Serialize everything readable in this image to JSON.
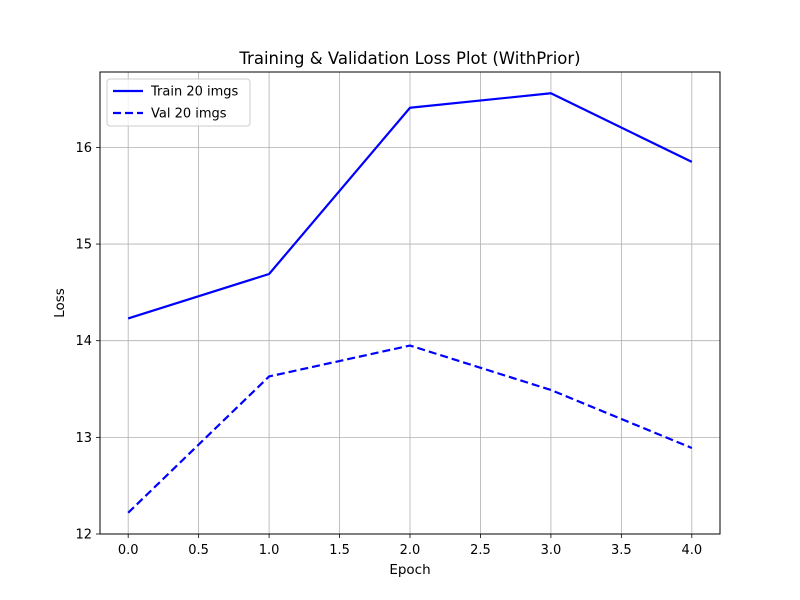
{
  "chart_data": {
    "type": "line",
    "title": "Training & Validation Loss Plot (WithPrior)",
    "xlabel": "Epoch",
    "ylabel": "Loss",
    "xlim": [
      -0.2,
      4.2
    ],
    "ylim": [
      12,
      16.78
    ],
    "xticks": [
      0.0,
      0.5,
      1.0,
      1.5,
      2.0,
      2.5,
      3.0,
      3.5,
      4.0
    ],
    "xtick_labels": [
      "0.0",
      "0.5",
      "1.0",
      "1.5",
      "2.0",
      "2.5",
      "3.0",
      "3.5",
      "4.0"
    ],
    "yticks": [
      12,
      13,
      14,
      15,
      16
    ],
    "ytick_labels": [
      "12",
      "13",
      "14",
      "15",
      "16"
    ],
    "grid": true,
    "legend_position": "top-left",
    "x": [
      0,
      1,
      2,
      3,
      4
    ],
    "series": [
      {
        "name": "Train 20 imgs",
        "values": [
          14.23,
          14.69,
          16.41,
          16.56,
          15.85
        ],
        "color": "#0000ff",
        "style": "solid"
      },
      {
        "name": "Val 20 imgs",
        "values": [
          12.22,
          13.63,
          13.95,
          13.49,
          12.89
        ],
        "color": "#0000ff",
        "style": "dashed"
      }
    ]
  }
}
